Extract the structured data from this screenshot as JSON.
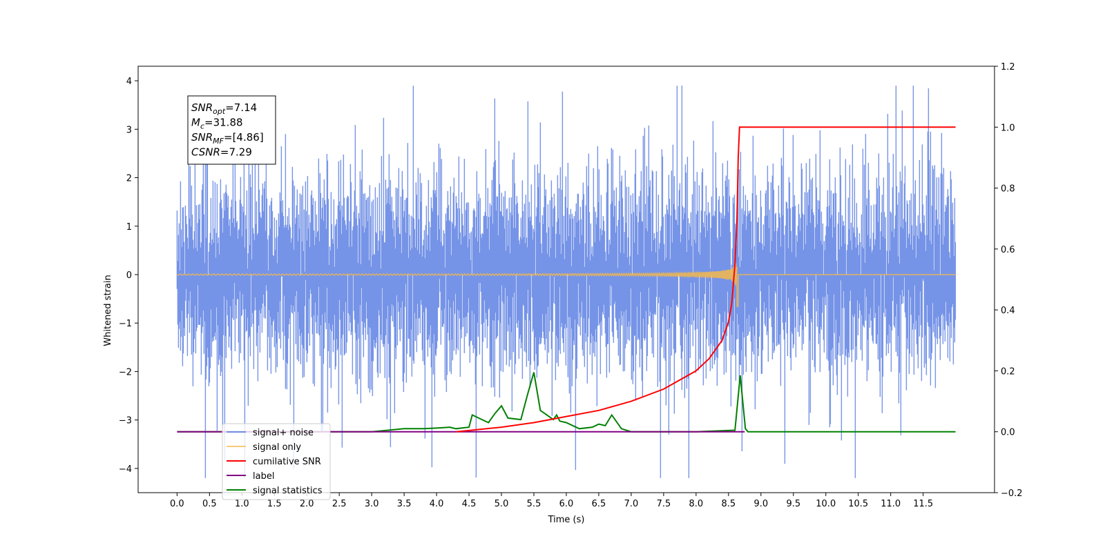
{
  "chart_data": {
    "type": "line",
    "xlabel": "Time (s)",
    "ylabel": "Whitened strain",
    "xlim": [
      -0.6,
      12.6
    ],
    "ylim": [
      -4.5,
      4.3
    ],
    "y2lim": [
      -0.2,
      1.2
    ],
    "grid": false,
    "x_ticks": [
      "0.0",
      "0.5",
      "1.0",
      "1.5",
      "2.0",
      "2.5",
      "3.0",
      "3.5",
      "4.0",
      "4.5",
      "5.0",
      "5.5",
      "6.0",
      "6.5",
      "7.0",
      "7.5",
      "8.0",
      "8.5",
      "9.0",
      "9.5",
      "10.0",
      "10.5",
      "11.0",
      "11.5"
    ],
    "y_ticks": [
      "4",
      "3",
      "2",
      "1",
      "0",
      "−1",
      "−2",
      "−3",
      "−4"
    ],
    "y2_ticks": [
      "1.2",
      "1.0",
      "0.8",
      "0.6",
      "0.4",
      "0.2",
      "0.0",
      "−0.2"
    ],
    "legend_position": "lower-left",
    "annotation": {
      "lines": [
        {
          "main": "SNR",
          "sub": "opt",
          "rest": "=7.14"
        },
        {
          "main": "M",
          "sub": "c",
          "rest": "=31.88"
        },
        {
          "main": "SNR",
          "sub": "MF",
          "rest": "=[4.86]"
        },
        {
          "main": "CSNR",
          "sub": "",
          "rest": "=7.29"
        }
      ]
    },
    "series": [
      {
        "name": "signal+ noise",
        "color": "#6f8ee6",
        "axis": "left",
        "description_values": {
          "x_range": [
            0.0,
            12.0
          ],
          "amplitude_envelope": [
            -4.2,
            3.9
          ]
        }
      },
      {
        "name": "signal only",
        "color": "#f5b94a",
        "axis": "left",
        "description_values": {
          "x_range": [
            0.0,
            12.0
          ],
          "merger_time": 8.65,
          "peak_amplitude": 0.6
        }
      },
      {
        "name": "cumilative SNR",
        "color": "#ff0000",
        "axis": "right",
        "x": [
          4.3,
          5.0,
          5.5,
          6.0,
          6.5,
          7.0,
          7.5,
          8.0,
          8.2,
          8.4,
          8.5,
          8.55,
          8.6,
          8.63,
          8.65,
          8.67,
          12.0
        ],
        "values": [
          0.0,
          0.015,
          0.03,
          0.05,
          0.07,
          0.1,
          0.14,
          0.2,
          0.24,
          0.3,
          0.36,
          0.42,
          0.55,
          0.7,
          0.9,
          1.0,
          1.0
        ]
      },
      {
        "name": "label",
        "color": "#800080",
        "axis": "right",
        "x": [
          0.0,
          8.75
        ],
        "values": [
          0.0,
          0.0
        ]
      },
      {
        "name": "signal statistics",
        "color": "#008000",
        "axis": "right",
        "x": [
          0.0,
          3.0,
          3.5,
          3.8,
          4.0,
          4.2,
          4.3,
          4.5,
          4.55,
          4.7,
          4.8,
          4.9,
          5.0,
          5.1,
          5.3,
          5.4,
          5.5,
          5.6,
          5.7,
          5.8,
          5.85,
          5.9,
          6.0,
          6.2,
          6.4,
          6.5,
          6.6,
          6.7,
          6.75,
          6.85,
          7.0,
          8.0,
          8.6,
          8.68,
          8.76,
          8.8,
          9.5,
          12.0
        ],
        "values": [
          0.0,
          0.0,
          0.01,
          0.01,
          0.012,
          0.015,
          0.01,
          0.015,
          0.055,
          0.04,
          0.03,
          0.06,
          0.085,
          0.045,
          0.04,
          0.12,
          0.195,
          0.07,
          0.055,
          0.04,
          0.055,
          0.035,
          0.03,
          0.01,
          0.015,
          0.025,
          0.02,
          0.055,
          0.04,
          0.01,
          0.0,
          0.0,
          0.005,
          0.185,
          0.01,
          0.0,
          0.0,
          0.0
        ]
      }
    ]
  }
}
